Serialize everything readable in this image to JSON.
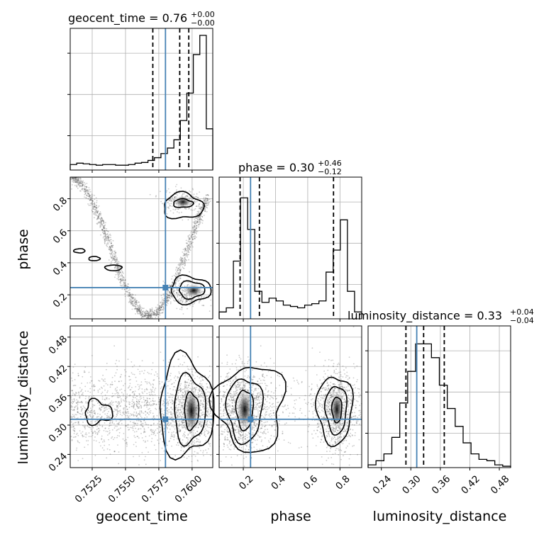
{
  "chart_data": {
    "type": "corner",
    "truth_color": "#4682b4",
    "parameters": [
      "geocent_time",
      "phase",
      "luminosity_distance"
    ],
    "truths": {
      "geocent_time": 0.758,
      "phase": 0.245,
      "luminosity_distance": 0.312
    },
    "titles": {
      "geocent_time": {
        "label": "geocent_time",
        "value": "0.76",
        "plus": "+0.00",
        "minus": "−0.00"
      },
      "phase": {
        "label": "phase",
        "value": "0.30",
        "plus": "+0.46",
        "minus": "−0.12"
      },
      "luminosity_distance": {
        "label": "luminosity_distance",
        "value": "0.33",
        "plus": "+0.04",
        "minus": "−0.04"
      }
    },
    "axes": {
      "geocent_time": {
        "range": [
          0.75085,
          0.76155
        ],
        "ticks": [
          0.7525,
          0.755,
          0.7575,
          0.76
        ],
        "tick_labels": [
          "0.7525",
          "0.7550",
          "0.7575",
          "0.7600"
        ]
      },
      "phase": {
        "range": [
          0.05,
          0.935
        ],
        "ticks": [
          0.2,
          0.4,
          0.6,
          0.8
        ],
        "tick_labels": [
          "0.2",
          "0.4",
          "0.6",
          "0.8"
        ]
      },
      "luminosity_distance": {
        "range": [
          0.213,
          0.503
        ],
        "ticks": [
          0.24,
          0.3,
          0.36,
          0.42,
          0.48
        ],
        "tick_labels": [
          "0.24",
          "0.30",
          "0.36",
          "0.42",
          "0.48"
        ]
      }
    },
    "histograms": {
      "geocent_time": {
        "bins": [
          0.75085,
          0.76155
        ],
        "counts": [
          0.04,
          0.05,
          0.045,
          0.04,
          0.035,
          0.04,
          0.04,
          0.035,
          0.035,
          0.04,
          0.05,
          0.055,
          0.07,
          0.09,
          0.12,
          0.16,
          0.22,
          0.36,
          0.56,
          0.84,
          0.98,
          0.3
        ],
        "quantiles": [
          0.75705,
          0.75907,
          0.75975
        ]
      },
      "phase": {
        "bins": [
          0.05,
          0.935
        ],
        "counts": [
          0.05,
          0.08,
          0.42,
          0.88,
          0.65,
          0.2,
          0.12,
          0.15,
          0.13,
          0.1,
          0.09,
          0.08,
          0.1,
          0.11,
          0.13,
          0.34,
          0.5,
          0.72,
          0.2,
          0.05
        ],
        "quantiles": [
          0.18,
          0.3,
          0.76
        ]
      },
      "luminosity_distance": {
        "bins": [
          0.213,
          0.503
        ],
        "counts": [
          0.02,
          0.05,
          0.1,
          0.22,
          0.47,
          0.7,
          0.9,
          0.9,
          0.8,
          0.6,
          0.43,
          0.3,
          0.18,
          0.1,
          0.06,
          0.05,
          0.02,
          0.01
        ],
        "quantiles": [
          0.29,
          0.326,
          0.368
        ]
      }
    },
    "grid": true
  }
}
